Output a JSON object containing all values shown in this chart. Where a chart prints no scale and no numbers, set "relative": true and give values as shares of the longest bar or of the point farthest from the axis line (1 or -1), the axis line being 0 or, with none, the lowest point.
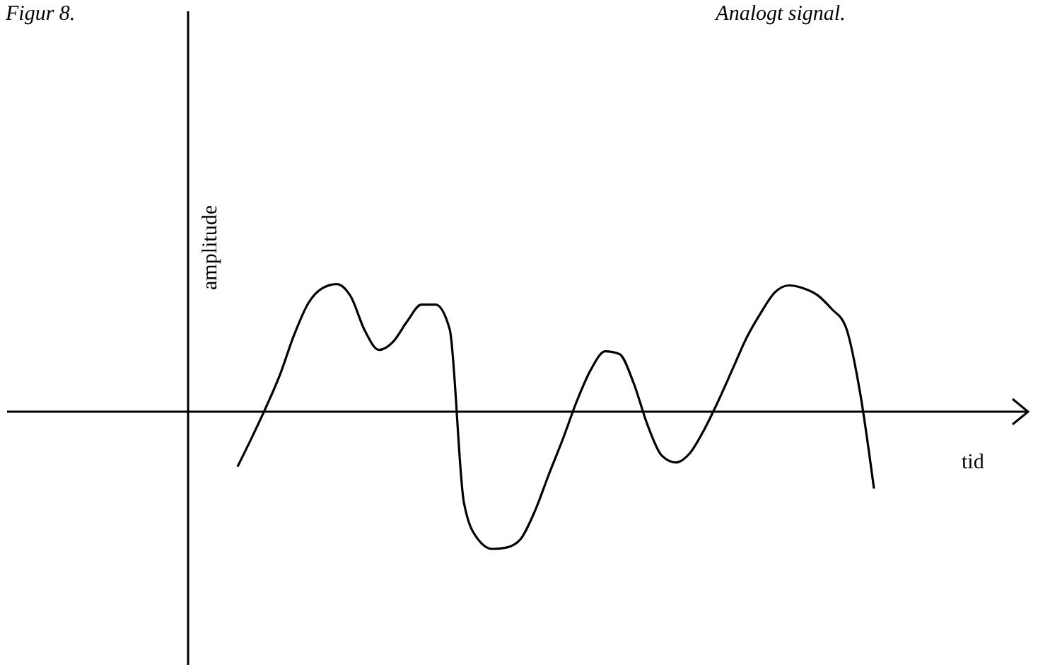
{
  "chart_data": {
    "type": "line",
    "title": "Analogt signal.",
    "xlabel": "tid",
    "ylabel": "amplitude",
    "relative": true,
    "annotations": [
      "Figur 8."
    ],
    "categories": [
      null,
      null,
      null,
      null,
      null,
      null,
      null,
      null,
      null,
      null,
      null,
      null,
      null,
      null,
      null,
      null,
      null,
      null,
      null,
      null,
      null,
      null,
      null,
      null,
      null,
      null,
      null,
      null,
      null,
      null,
      null,
      null,
      null,
      null,
      null,
      null,
      null,
      null,
      null,
      null,
      null,
      null,
      null,
      null,
      null,
      null
    ],
    "series": [
      {
        "color": "#000000",
        "values": [
          -0.4,
          -0.19,
          0.03,
          0.27,
          0.56,
          0.79,
          0.9,
          0.93,
          0.84,
          0.59,
          0.45,
          0.51,
          0.66,
          0.78,
          0.78,
          0.6,
          -0.66,
          -0.93,
          -1.0,
          -0.99,
          -0.93,
          -0.73,
          -0.46,
          -0.2,
          0.08,
          0.31,
          0.44,
          0.42,
          0.21,
          -0.1,
          -0.32,
          -0.37,
          -0.3,
          -0.13,
          0.08,
          0.31,
          0.54,
          0.72,
          0.87,
          0.92,
          0.9,
          0.85,
          0.75,
          0.62,
          0.15,
          -0.56
        ]
      }
    ],
    "marker": "none",
    "line_style": "solid"
  }
}
